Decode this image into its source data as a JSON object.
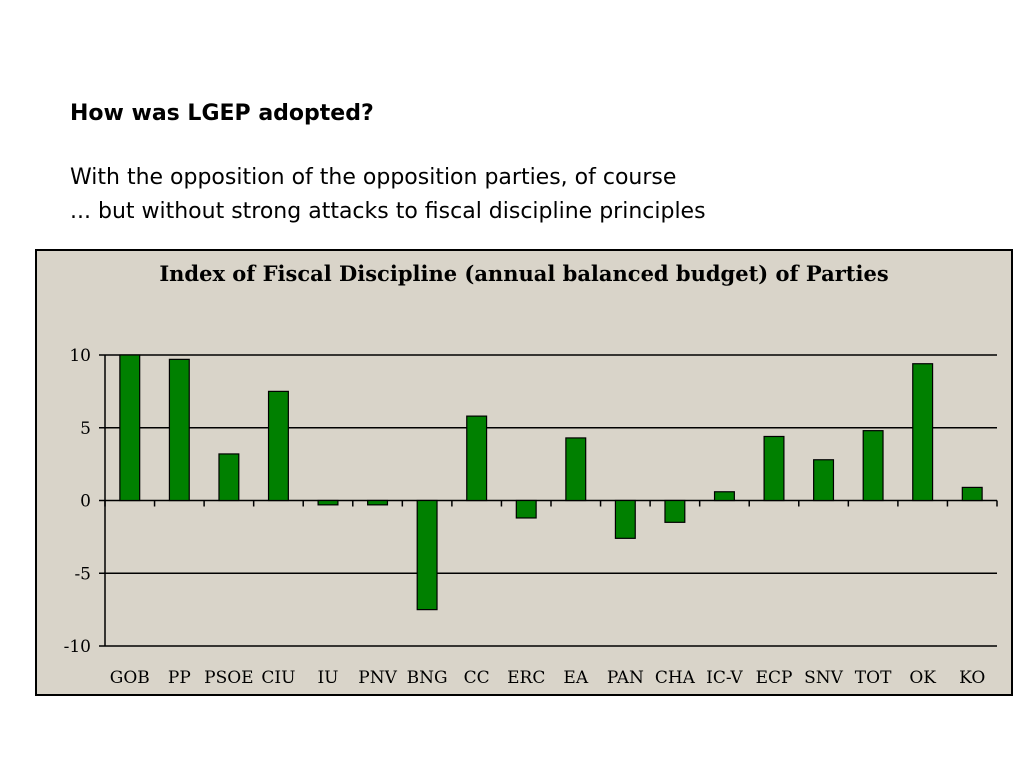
{
  "slide": {
    "heading": "How was LGEP adopted?",
    "lines": [
      "With the opposition of the opposition parties, of course",
      "... but without strong attacks to fiscal discipline principles"
    ]
  },
  "chart_data": {
    "type": "bar",
    "title": "Index of Fiscal Discipline (annual balanced budget) of Parties",
    "xlabel": "",
    "ylabel": "",
    "ylim": [
      -10,
      10
    ],
    "yticks": [
      10,
      5,
      0,
      -5,
      -10
    ],
    "grid": true,
    "categories": [
      "GOB",
      "PP",
      "PSOE",
      "CIU",
      "IU",
      "PNV",
      "BNG",
      "CC",
      "ERC",
      "EA",
      "PAN",
      "CHA",
      "IC-V",
      "ECP",
      "SNV",
      "TOT",
      "OK",
      "KO"
    ],
    "values": [
      10.0,
      9.7,
      3.2,
      7.5,
      -0.3,
      -0.3,
      -7.5,
      5.8,
      -1.2,
      4.3,
      -2.6,
      -1.5,
      0.6,
      4.4,
      2.8,
      4.8,
      9.4,
      0.9
    ]
  },
  "colors": {
    "bar_fill": "#008000",
    "panel_background": "#d9d4c9"
  }
}
